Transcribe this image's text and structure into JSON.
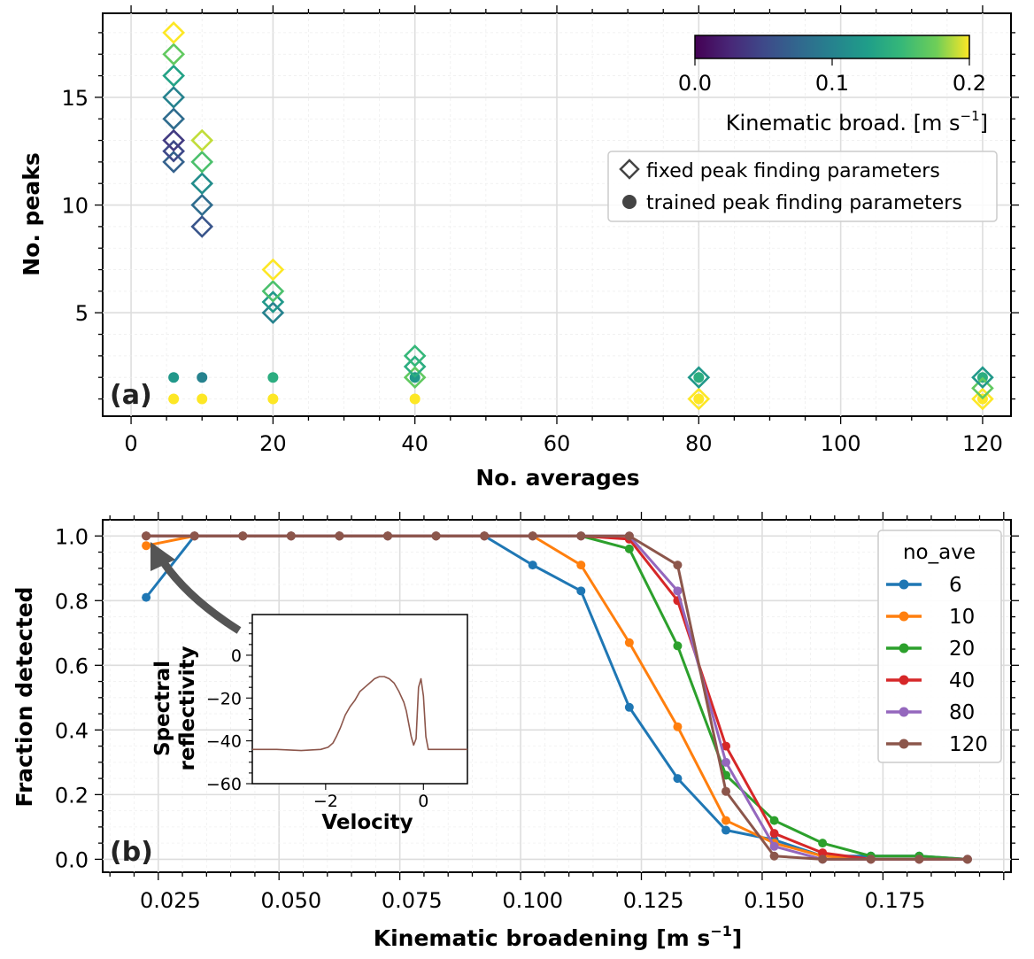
{
  "chart_data": [
    {
      "panel": "a",
      "type": "scatter",
      "panel_label": "(a)",
      "xlabel": "No. averages",
      "ylabel": "No. peaks",
      "xlim": [
        -4,
        124
      ],
      "ylim": [
        0.2,
        18.9
      ],
      "xticks": [
        0,
        20,
        40,
        60,
        80,
        100,
        120
      ],
      "yticks": [
        5,
        10,
        15
      ],
      "colorbar": {
        "label_prefix": "Kinematic broad. [m s",
        "label_sup": "−1",
        "label_suffix": "]",
        "ticks": [
          "0.0",
          "0.1",
          "0.2"
        ],
        "range": [
          0.0,
          0.2
        ],
        "colormap": "viridis"
      },
      "legend": [
        {
          "marker": "diamond-open",
          "label": "fixed peak finding parameters"
        },
        {
          "marker": "circle",
          "label": "trained peak finding parameters"
        }
      ],
      "fixed_points": [
        {
          "x": 6,
          "y": 12,
          "c": 0.07
        },
        {
          "x": 6,
          "y": 12.5,
          "c": 0.05
        },
        {
          "x": 6,
          "y": 13,
          "c": 0.04
        },
        {
          "x": 6,
          "y": 14,
          "c": 0.08
        },
        {
          "x": 6,
          "y": 15,
          "c": 0.1
        },
        {
          "x": 6,
          "y": 16,
          "c": 0.13
        },
        {
          "x": 6,
          "y": 17,
          "c": 0.17
        },
        {
          "x": 6,
          "y": 18,
          "c": 0.2
        },
        {
          "x": 10,
          "y": 9,
          "c": 0.06
        },
        {
          "x": 10,
          "y": 10,
          "c": 0.08
        },
        {
          "x": 10,
          "y": 11,
          "c": 0.11
        },
        {
          "x": 10,
          "y": 12,
          "c": 0.16
        },
        {
          "x": 10,
          "y": 13,
          "c": 0.19
        },
        {
          "x": 20,
          "y": 5,
          "c": 0.1
        },
        {
          "x": 20,
          "y": 5.5,
          "c": 0.12
        },
        {
          "x": 20,
          "y": 6,
          "c": 0.16
        },
        {
          "x": 20,
          "y": 7,
          "c": 0.2
        },
        {
          "x": 40,
          "y": 2,
          "c": 0.17
        },
        {
          "x": 40,
          "y": 2.5,
          "c": 0.14
        },
        {
          "x": 40,
          "y": 3,
          "c": 0.15
        },
        {
          "x": 80,
          "y": 1,
          "c": 0.2
        },
        {
          "x": 80,
          "y": 2,
          "c": 0.12
        },
        {
          "x": 120,
          "y": 1,
          "c": 0.2
        },
        {
          "x": 120,
          "y": 1.5,
          "c": 0.17
        },
        {
          "x": 120,
          "y": 2,
          "c": 0.12
        }
      ],
      "trained_points": [
        {
          "x": 6,
          "y": 2,
          "c": 0.12
        },
        {
          "x": 6,
          "y": 1,
          "c": 0.2
        },
        {
          "x": 10,
          "y": 2,
          "c": 0.1
        },
        {
          "x": 10,
          "y": 1,
          "c": 0.2
        },
        {
          "x": 20,
          "y": 2,
          "c": 0.14
        },
        {
          "x": 20,
          "y": 1,
          "c": 0.2
        },
        {
          "x": 40,
          "y": 2,
          "c": 0.12
        },
        {
          "x": 40,
          "y": 1,
          "c": 0.2
        },
        {
          "x": 80,
          "y": 2,
          "c": 0.14
        },
        {
          "x": 80,
          "y": 1,
          "c": 0.2
        },
        {
          "x": 120,
          "y": 2,
          "c": 0.14
        },
        {
          "x": 120,
          "y": 1,
          "c": 0.2
        }
      ]
    },
    {
      "panel": "b",
      "type": "line",
      "panel_label": "(b)",
      "xlabel_prefix": "Kinematic broadening [m s",
      "xlabel_sup": "−1",
      "xlabel_suffix": "]",
      "ylabel": "Fraction detected",
      "xlim": [
        0.011,
        0.199
      ],
      "ylim": [
        -0.04,
        1.05
      ],
      "xticks": [
        "0.025",
        "0.050",
        "0.075",
        "0.100",
        "0.125",
        "0.150",
        "0.175"
      ],
      "yticks": [
        "0.0",
        "0.2",
        "0.4",
        "0.6",
        "0.8",
        "1.0"
      ],
      "legend_title": "no_ave",
      "x": [
        0.02,
        0.03,
        0.04,
        0.05,
        0.06,
        0.07,
        0.08,
        0.09,
        0.1,
        0.11,
        0.12,
        0.13,
        0.14,
        0.15,
        0.16,
        0.17,
        0.18,
        0.19
      ],
      "series": [
        {
          "name": "6",
          "color": "#1f77b4",
          "values": [
            0.81,
            1.0,
            1.0,
            1.0,
            1.0,
            1.0,
            1.0,
            1.0,
            0.91,
            0.83,
            0.47,
            0.25,
            0.09,
            0.06,
            0.01,
            0.01,
            0.01,
            0.0
          ]
        },
        {
          "name": "10",
          "color": "#ff7f0e",
          "values": [
            0.97,
            1.0,
            1.0,
            1.0,
            1.0,
            1.0,
            1.0,
            1.0,
            1.0,
            0.91,
            0.67,
            0.41,
            0.12,
            0.05,
            0.01,
            0.0,
            0.0,
            0.0
          ]
        },
        {
          "name": "20",
          "color": "#2ca02c",
          "values": [
            1.0,
            1.0,
            1.0,
            1.0,
            1.0,
            1.0,
            1.0,
            1.0,
            1.0,
            1.0,
            0.96,
            0.66,
            0.26,
            0.12,
            0.05,
            0.01,
            0.01,
            0.0
          ]
        },
        {
          "name": "40",
          "color": "#d62728",
          "values": [
            1.0,
            1.0,
            1.0,
            1.0,
            1.0,
            1.0,
            1.0,
            1.0,
            1.0,
            1.0,
            0.99,
            0.8,
            0.35,
            0.08,
            0.02,
            0.0,
            0.0,
            0.0
          ]
        },
        {
          "name": "80",
          "color": "#9467bd",
          "values": [
            1.0,
            1.0,
            1.0,
            1.0,
            1.0,
            1.0,
            1.0,
            1.0,
            1.0,
            1.0,
            1.0,
            0.83,
            0.3,
            0.04,
            0.0,
            0.0,
            0.0,
            0.0
          ]
        },
        {
          "name": "120",
          "color": "#8c564b",
          "values": [
            1.0,
            1.0,
            1.0,
            1.0,
            1.0,
            1.0,
            1.0,
            1.0,
            1.0,
            1.0,
            1.0,
            0.91,
            0.21,
            0.01,
            0.0,
            0.0,
            0.0,
            0.0
          ]
        }
      ]
    },
    {
      "panel": "b-inset",
      "type": "line",
      "xlabel": "Velocity",
      "ylabel_line1": "Spectral",
      "ylabel_line2": "reflectivity",
      "xlim": [
        -3.5,
        0.9
      ],
      "ylim": [
        -60,
        19
      ],
      "xticks": [
        "−2",
        "0"
      ],
      "yticks": [
        "0",
        "−20",
        "−40",
        "−60"
      ],
      "color": "#8c564b",
      "x": [
        -3.5,
        -3.0,
        -2.5,
        -2.1,
        -1.95,
        -1.85,
        -1.78,
        -1.7,
        -1.6,
        -1.5,
        -1.4,
        -1.3,
        -1.2,
        -1.1,
        -1.0,
        -0.9,
        -0.8,
        -0.7,
        -0.6,
        -0.5,
        -0.4,
        -0.35,
        -0.3,
        -0.25,
        -0.2,
        -0.15,
        -0.1,
        -0.05,
        0.0,
        0.05,
        0.1,
        0.5,
        0.9
      ],
      "values": [
        -44,
        -44,
        -44.5,
        -44,
        -43,
        -41,
        -38,
        -34,
        -28,
        -24,
        -21,
        -17,
        -15,
        -13,
        -11,
        -10,
        -10,
        -11,
        -13,
        -17,
        -22,
        -26,
        -32,
        -38,
        -42,
        -39,
        -15,
        -11,
        -19,
        -38,
        -44,
        -44,
        -44
      ]
    }
  ]
}
